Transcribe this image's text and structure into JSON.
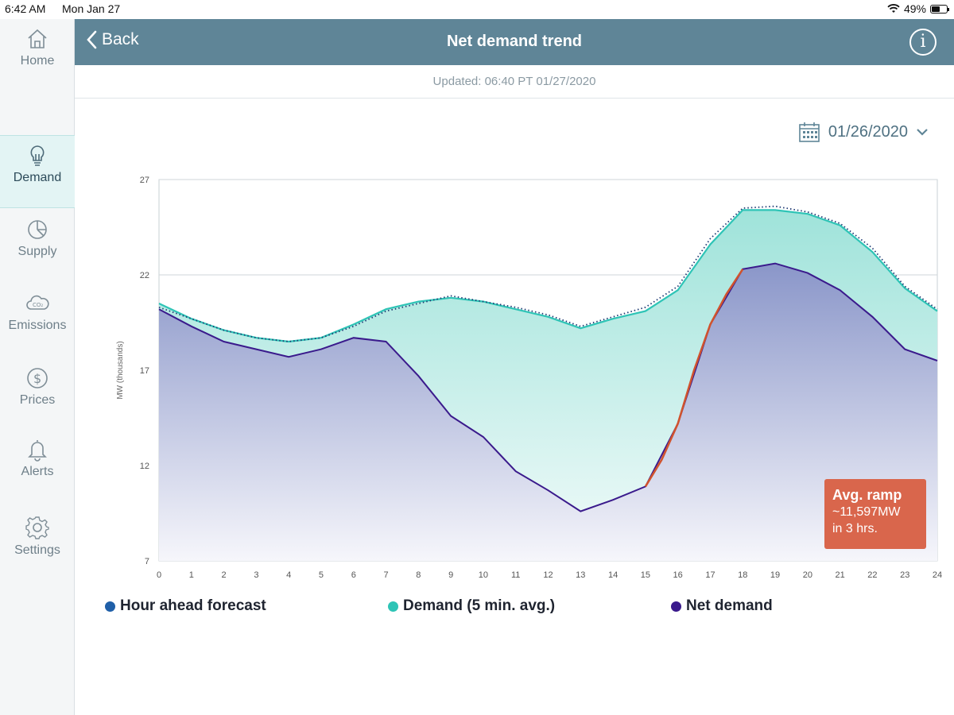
{
  "status": {
    "time": "6:42 AM",
    "date": "Mon Jan 27",
    "battery": "49%",
    "battery_level": 0.49
  },
  "header": {
    "back_label": "Back",
    "title": "Net demand trend",
    "info_label": "i"
  },
  "updated": "Updated: 06:40 PT 01/27/2020",
  "date_picker": {
    "value": "01/26/2020"
  },
  "sidebar": {
    "items": [
      {
        "label": "Home",
        "icon": "home-icon"
      },
      {
        "label": "Demand",
        "icon": "lightbulb-icon",
        "active": true
      },
      {
        "label": "Supply",
        "icon": "pie-chart-icon"
      },
      {
        "label": "Emissions",
        "icon": "co2-cloud-icon"
      },
      {
        "label": "Prices",
        "icon": "dollar-icon"
      },
      {
        "label": "Alerts",
        "icon": "bell-icon"
      },
      {
        "label": "Settings",
        "icon": "gear-icon"
      }
    ]
  },
  "legend": [
    {
      "label": "Hour ahead forecast",
      "color": "#1f5fa8"
    },
    {
      "label": "Demand (5 min. avg.)",
      "color": "#2ec4b6"
    },
    {
      "label": "Net demand",
      "color": "#3a1a8c"
    }
  ],
  "ramp": {
    "title": "Avg. ramp",
    "value": "~11,597MW",
    "duration": "in 3 hrs."
  },
  "chart_data": {
    "type": "area",
    "ylabel": "MW (thousands)",
    "xlabel": "",
    "xlim": [
      0,
      24
    ],
    "ylim": [
      7,
      27
    ],
    "x_ticks": [
      0,
      1,
      2,
      3,
      4,
      5,
      6,
      7,
      8,
      9,
      10,
      11,
      12,
      13,
      14,
      15,
      16,
      17,
      18,
      19,
      20,
      21,
      22,
      23,
      24
    ],
    "y_ticks": [
      7,
      12,
      17,
      22,
      27
    ],
    "grid": true,
    "series": [
      {
        "name": "Hour ahead forecast",
        "color": "#1f3b73",
        "style": "dotted",
        "x": [
          0,
          1,
          2,
          3,
          4,
          5,
          6,
          7,
          8,
          9,
          10,
          11,
          12,
          13,
          14,
          15,
          16,
          17,
          18,
          19,
          20,
          21,
          22,
          23,
          24
        ],
        "y": [
          20.3,
          19.7,
          19.1,
          18.7,
          18.5,
          18.7,
          19.3,
          20.1,
          20.5,
          20.9,
          20.6,
          20.3,
          19.9,
          19.3,
          19.8,
          20.3,
          21.4,
          23.9,
          25.5,
          25.6,
          25.3,
          24.7,
          23.4,
          21.4,
          20.2
        ]
      },
      {
        "name": "Demand (5 min. avg.)",
        "color": "#2ec4b6",
        "style": "solid",
        "x": [
          0,
          1,
          2,
          3,
          4,
          5,
          6,
          7,
          8,
          9,
          10,
          11,
          12,
          13,
          14,
          15,
          16,
          17,
          18,
          19,
          20,
          21,
          22,
          23,
          24
        ],
        "y": [
          20.5,
          19.7,
          19.1,
          18.7,
          18.5,
          18.7,
          19.4,
          20.2,
          20.6,
          20.8,
          20.6,
          20.2,
          19.8,
          19.2,
          19.7,
          20.1,
          21.2,
          23.6,
          25.4,
          25.4,
          25.2,
          24.6,
          23.2,
          21.3,
          20.1
        ]
      },
      {
        "name": "Net demand",
        "color": "#3a1a8c",
        "style": "solid",
        "x": [
          0,
          1,
          2,
          3,
          4,
          5,
          6,
          7,
          8,
          9,
          10,
          11,
          12,
          13,
          14,
          15,
          16,
          17,
          18,
          19,
          20,
          21,
          22,
          23,
          24
        ],
        "y": [
          20.2,
          19.3,
          18.5,
          18.1,
          17.7,
          18.1,
          18.7,
          18.5,
          16.7,
          14.6,
          13.5,
          11.7,
          10.7,
          9.6,
          10.2,
          10.9,
          14.2,
          19.4,
          22.3,
          22.6,
          22.1,
          21.2,
          19.8,
          18.1,
          17.5
        ]
      },
      {
        "name": "Ramp",
        "color": "#d0532e",
        "style": "solid",
        "x": [
          15,
          15.5,
          16,
          16.5,
          17,
          17.5,
          18
        ],
        "y": [
          10.9,
          12.3,
          14.2,
          17.0,
          19.4,
          21.0,
          22.3
        ]
      }
    ]
  }
}
